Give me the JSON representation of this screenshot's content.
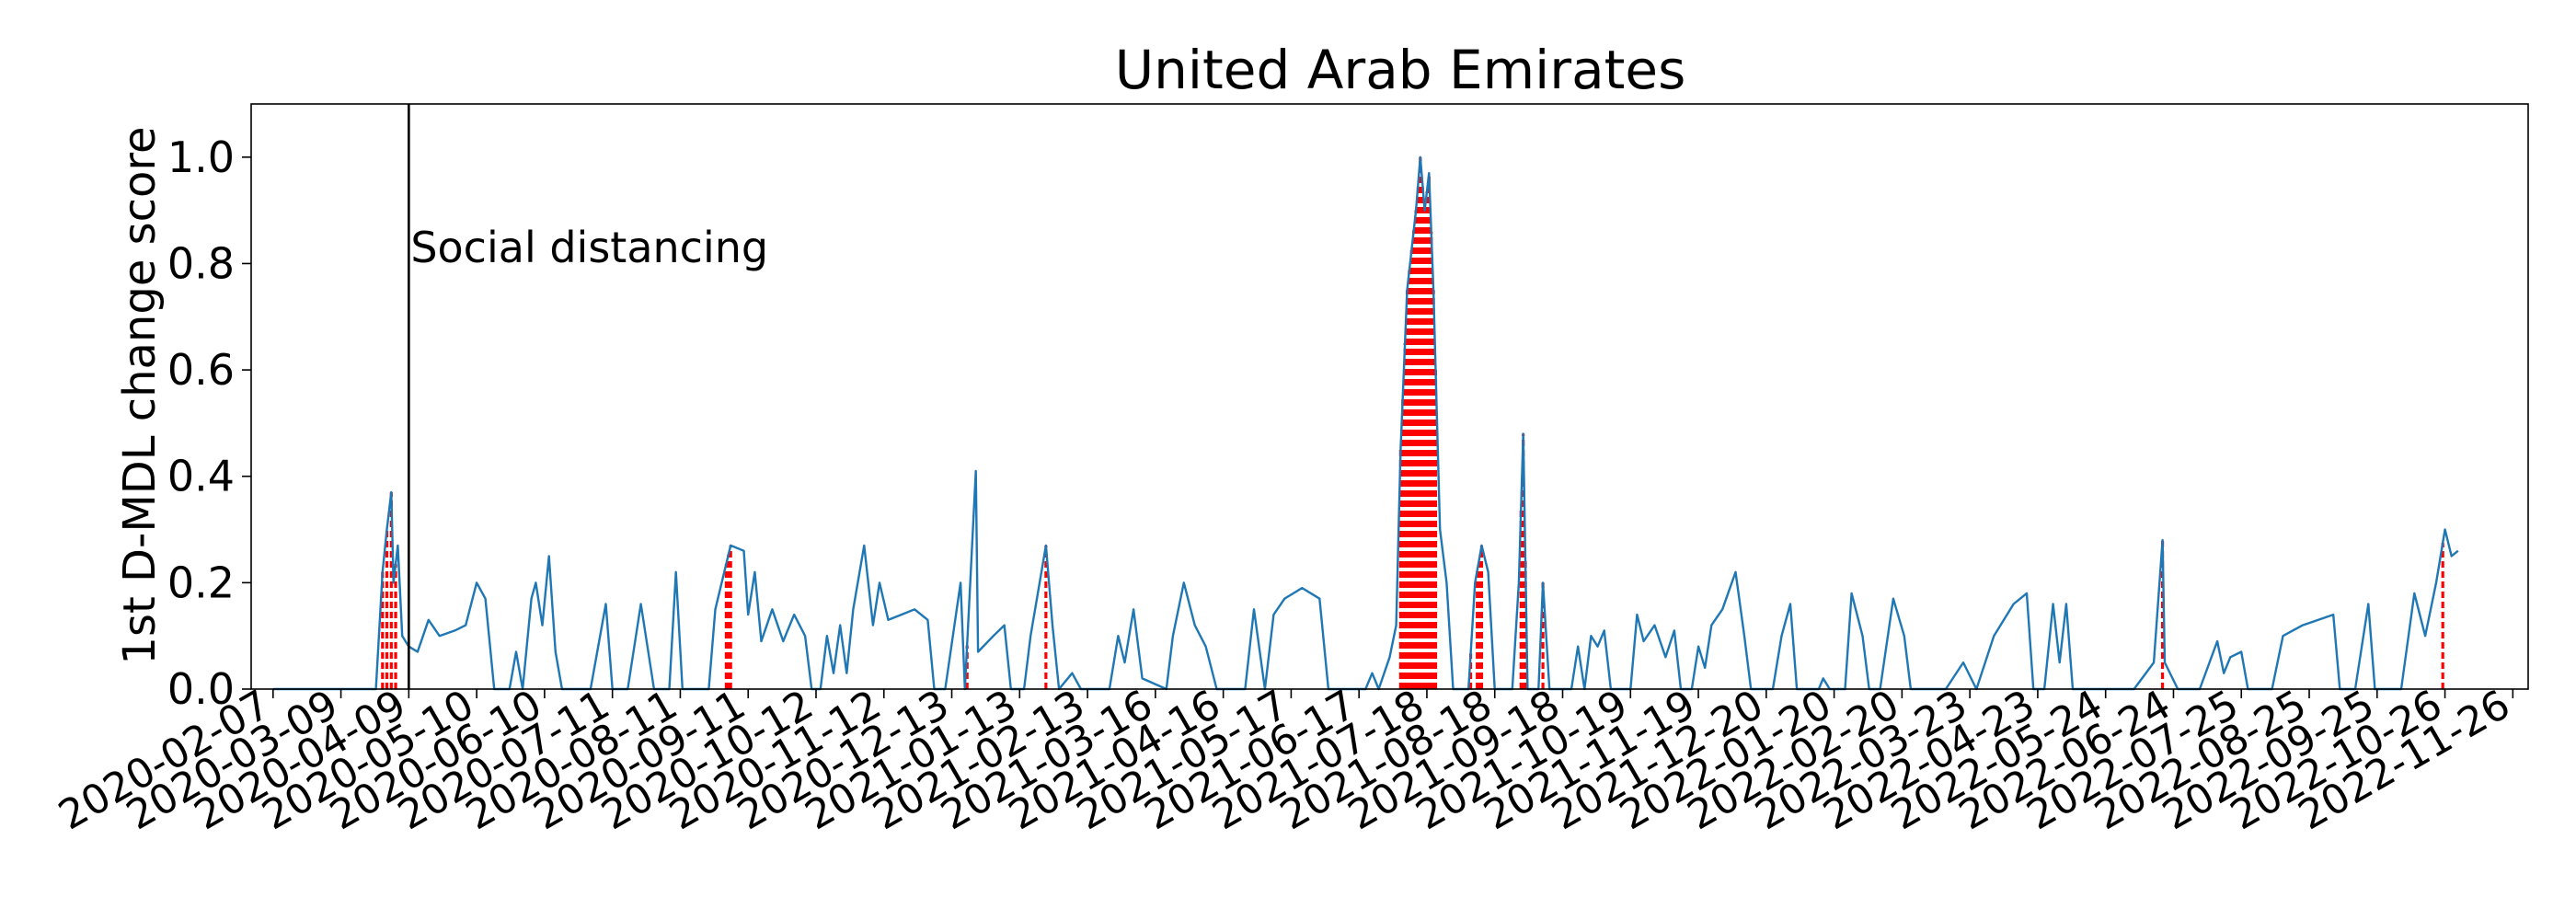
{
  "chart_data": {
    "type": "line",
    "title": "United Arab Emirates",
    "xlabel": "",
    "ylabel": "1st D-MDL change score",
    "ylim": [
      0,
      1.1
    ],
    "xlim": [
      "2020-01-28",
      "2022-12-03"
    ],
    "grid": false,
    "yticks": [
      "0.0",
      "0.2",
      "0.4",
      "0.6",
      "0.8",
      "1.0"
    ],
    "xticks": [
      "2020-02-07",
      "2020-03-09",
      "2020-04-09",
      "2020-05-10",
      "2020-06-10",
      "2020-07-11",
      "2020-08-11",
      "2020-09-11",
      "2020-10-12",
      "2020-11-12",
      "2020-12-13",
      "2021-01-13",
      "2021-02-13",
      "2021-03-16",
      "2021-04-16",
      "2021-05-17",
      "2021-06-17",
      "2021-07-18",
      "2021-08-18",
      "2021-09-18",
      "2021-10-19",
      "2021-11-19",
      "2021-12-20",
      "2022-01-20",
      "2022-02-20",
      "2022-03-23",
      "2022-04-23",
      "2022-05-24",
      "2022-06-24",
      "2022-07-25",
      "2022-08-25",
      "2022-09-25",
      "2022-10-26",
      "2022-11-26"
    ],
    "annotation": {
      "text": "Social distancing",
      "date": "2020-04-09"
    },
    "series": [
      {
        "color": "#1f77b4",
        "points": [
          [
            "2020-02-07",
            0.0
          ],
          [
            "2020-03-20",
            0.0
          ],
          [
            "2020-03-25",
            0.0
          ],
          [
            "2020-03-28",
            0.22
          ],
          [
            "2020-03-30",
            0.3
          ],
          [
            "2020-04-01",
            0.37
          ],
          [
            "2020-04-02",
            0.2
          ],
          [
            "2020-04-04",
            0.27
          ],
          [
            "2020-04-06",
            0.1
          ],
          [
            "2020-04-09",
            0.08
          ],
          [
            "2020-04-13",
            0.07
          ],
          [
            "2020-04-18",
            0.13
          ],
          [
            "2020-04-23",
            0.1
          ],
          [
            "2020-04-30",
            0.11
          ],
          [
            "2020-05-05",
            0.12
          ],
          [
            "2020-05-10",
            0.2
          ],
          [
            "2020-05-14",
            0.17
          ],
          [
            "2020-05-18",
            0.0
          ],
          [
            "2020-05-25",
            0.0
          ],
          [
            "2020-05-28",
            0.07
          ],
          [
            "2020-05-31",
            0.0
          ],
          [
            "2020-06-04",
            0.17
          ],
          [
            "2020-06-06",
            0.2
          ],
          [
            "2020-06-09",
            0.12
          ],
          [
            "2020-06-12",
            0.25
          ],
          [
            "2020-06-15",
            0.07
          ],
          [
            "2020-06-18",
            0.0
          ],
          [
            "2020-07-01",
            0.0
          ],
          [
            "2020-07-08",
            0.16
          ],
          [
            "2020-07-11",
            0.0
          ],
          [
            "2020-07-18",
            0.0
          ],
          [
            "2020-07-24",
            0.16
          ],
          [
            "2020-07-30",
            0.0
          ],
          [
            "2020-08-06",
            0.0
          ],
          [
            "2020-08-09",
            0.22
          ],
          [
            "2020-08-12",
            0.0
          ],
          [
            "2020-08-24",
            0.0
          ],
          [
            "2020-08-27",
            0.15
          ],
          [
            "2020-09-03",
            0.27
          ],
          [
            "2020-09-09",
            0.26
          ],
          [
            "2020-09-11",
            0.14
          ],
          [
            "2020-09-14",
            0.22
          ],
          [
            "2020-09-17",
            0.09
          ],
          [
            "2020-09-22",
            0.15
          ],
          [
            "2020-09-27",
            0.09
          ],
          [
            "2020-10-02",
            0.14
          ],
          [
            "2020-10-07",
            0.1
          ],
          [
            "2020-10-10",
            0.0
          ],
          [
            "2020-10-14",
            0.0
          ],
          [
            "2020-10-17",
            0.1
          ],
          [
            "2020-10-20",
            0.03
          ],
          [
            "2020-10-23",
            0.12
          ],
          [
            "2020-10-26",
            0.03
          ],
          [
            "2020-10-29",
            0.15
          ],
          [
            "2020-11-03",
            0.27
          ],
          [
            "2020-11-07",
            0.12
          ],
          [
            "2020-11-10",
            0.2
          ],
          [
            "2020-11-14",
            0.13
          ],
          [
            "2020-11-20",
            0.14
          ],
          [
            "2020-11-26",
            0.15
          ],
          [
            "2020-12-02",
            0.13
          ],
          [
            "2020-12-05",
            0.0
          ],
          [
            "2020-12-10",
            0.0
          ],
          [
            "2020-12-17",
            0.2
          ],
          [
            "2020-12-19",
            0.0
          ],
          [
            "2020-12-24",
            0.41
          ],
          [
            "2020-12-25",
            0.07
          ],
          [
            "2021-01-01",
            0.1
          ],
          [
            "2021-01-06",
            0.12
          ],
          [
            "2021-01-09",
            0.0
          ],
          [
            "2021-01-15",
            0.0
          ],
          [
            "2021-01-18",
            0.1
          ],
          [
            "2021-01-25",
            0.27
          ],
          [
            "2021-01-28",
            0.12
          ],
          [
            "2021-01-31",
            0.0
          ],
          [
            "2021-02-06",
            0.03
          ],
          [
            "2021-02-10",
            0.0
          ],
          [
            "2021-02-23",
            0.0
          ],
          [
            "2021-02-27",
            0.1
          ],
          [
            "2021-03-02",
            0.05
          ],
          [
            "2021-03-06",
            0.15
          ],
          [
            "2021-03-10",
            0.02
          ],
          [
            "2021-03-21",
            0.0
          ],
          [
            "2021-03-24",
            0.1
          ],
          [
            "2021-03-29",
            0.2
          ],
          [
            "2021-04-03",
            0.12
          ],
          [
            "2021-04-08",
            0.08
          ],
          [
            "2021-04-13",
            0.0
          ],
          [
            "2021-04-26",
            0.0
          ],
          [
            "2021-04-30",
            0.15
          ],
          [
            "2021-05-05",
            0.0
          ],
          [
            "2021-05-09",
            0.14
          ],
          [
            "2021-05-14",
            0.17
          ],
          [
            "2021-05-22",
            0.19
          ],
          [
            "2021-05-30",
            0.17
          ],
          [
            "2021-06-03",
            0.0
          ],
          [
            "2021-06-20",
            0.0
          ],
          [
            "2021-06-23",
            0.03
          ],
          [
            "2021-06-26",
            0.0
          ],
          [
            "2021-07-01",
            0.06
          ],
          [
            "2021-07-04",
            0.12
          ],
          [
            "2021-07-06",
            0.45
          ],
          [
            "2021-07-09",
            0.75
          ],
          [
            "2021-07-13",
            0.9
          ],
          [
            "2021-07-15",
            1.0
          ],
          [
            "2021-07-17",
            0.9
          ],
          [
            "2021-07-19",
            0.97
          ],
          [
            "2021-07-21",
            0.75
          ],
          [
            "2021-07-24",
            0.3
          ],
          [
            "2021-07-27",
            0.2
          ],
          [
            "2021-07-30",
            0.0
          ],
          [
            "2021-08-06",
            0.0
          ],
          [
            "2021-08-09",
            0.2
          ],
          [
            "2021-08-12",
            0.27
          ],
          [
            "2021-08-15",
            0.22
          ],
          [
            "2021-08-18",
            0.0
          ],
          [
            "2021-08-26",
            0.0
          ],
          [
            "2021-08-29",
            0.2
          ],
          [
            "2021-08-31",
            0.48
          ],
          [
            "2021-09-02",
            0.0
          ],
          [
            "2021-09-07",
            0.0
          ],
          [
            "2021-09-09",
            0.2
          ],
          [
            "2021-09-12",
            0.0
          ],
          [
            "2021-09-22",
            0.0
          ],
          [
            "2021-09-25",
            0.08
          ],
          [
            "2021-09-28",
            0.0
          ],
          [
            "2021-10-01",
            0.1
          ],
          [
            "2021-10-04",
            0.08
          ],
          [
            "2021-10-07",
            0.11
          ],
          [
            "2021-10-10",
            0.0
          ],
          [
            "2021-10-19",
            0.0
          ],
          [
            "2021-10-22",
            0.14
          ],
          [
            "2021-10-25",
            0.09
          ],
          [
            "2021-10-30",
            0.12
          ],
          [
            "2021-11-04",
            0.06
          ],
          [
            "2021-11-08",
            0.11
          ],
          [
            "2021-11-11",
            0.0
          ],
          [
            "2021-11-16",
            0.0
          ],
          [
            "2021-11-19",
            0.08
          ],
          [
            "2021-11-22",
            0.04
          ],
          [
            "2021-11-25",
            0.12
          ],
          [
            "2021-11-30",
            0.15
          ],
          [
            "2021-12-06",
            0.22
          ],
          [
            "2021-12-10",
            0.1
          ],
          [
            "2021-12-13",
            0.0
          ],
          [
            "2021-12-23",
            0.0
          ],
          [
            "2021-12-27",
            0.1
          ],
          [
            "2021-12-31",
            0.16
          ],
          [
            "2022-01-03",
            0.0
          ],
          [
            "2022-01-13",
            0.0
          ],
          [
            "2022-01-15",
            0.02
          ],
          [
            "2022-01-18",
            0.0
          ],
          [
            "2022-01-25",
            0.0
          ],
          [
            "2022-01-28",
            0.18
          ],
          [
            "2022-02-02",
            0.1
          ],
          [
            "2022-02-05",
            0.0
          ],
          [
            "2022-02-10",
            0.0
          ],
          [
            "2022-02-16",
            0.17
          ],
          [
            "2022-02-21",
            0.1
          ],
          [
            "2022-02-24",
            0.0
          ],
          [
            "2022-03-12",
            0.0
          ],
          [
            "2022-03-20",
            0.05
          ],
          [
            "2022-03-26",
            0.0
          ],
          [
            "2022-04-03",
            0.1
          ],
          [
            "2022-04-12",
            0.16
          ],
          [
            "2022-04-18",
            0.18
          ],
          [
            "2022-04-21",
            0.0
          ],
          [
            "2022-04-26",
            0.0
          ],
          [
            "2022-04-30",
            0.16
          ],
          [
            "2022-05-03",
            0.05
          ],
          [
            "2022-05-06",
            0.16
          ],
          [
            "2022-05-09",
            0.0
          ],
          [
            "2022-06-06",
            0.0
          ],
          [
            "2022-06-15",
            0.05
          ],
          [
            "2022-06-19",
            0.28
          ],
          [
            "2022-06-20",
            0.05
          ],
          [
            "2022-06-26",
            0.0
          ],
          [
            "2022-07-06",
            0.0
          ],
          [
            "2022-07-14",
            0.09
          ],
          [
            "2022-07-17",
            0.03
          ],
          [
            "2022-07-20",
            0.06
          ],
          [
            "2022-07-25",
            0.07
          ],
          [
            "2022-07-28",
            0.0
          ],
          [
            "2022-08-08",
            0.0
          ],
          [
            "2022-08-13",
            0.1
          ],
          [
            "2022-08-22",
            0.12
          ],
          [
            "2022-09-05",
            0.14
          ],
          [
            "2022-09-08",
            0.0
          ],
          [
            "2022-09-15",
            0.0
          ],
          [
            "2022-09-21",
            0.16
          ],
          [
            "2022-09-24",
            0.0
          ],
          [
            "2022-10-06",
            0.0
          ],
          [
            "2022-10-12",
            0.18
          ],
          [
            "2022-10-17",
            0.1
          ],
          [
            "2022-10-22",
            0.2
          ],
          [
            "2022-10-26",
            0.3
          ],
          [
            "2022-10-29",
            0.25
          ],
          [
            "2022-11-01",
            0.26
          ]
        ]
      }
    ],
    "change_markers": {
      "color": "#ff0000",
      "style": "dashed",
      "dates": [
        "2020-03-28",
        "2020-03-30",
        "2020-04-01",
        "2020-04-03",
        "2020-09-01",
        "2020-09-02",
        "2020-09-03",
        "2020-12-20",
        "2021-01-25",
        "2021-07-06",
        "2021-07-07",
        "2021-07-08",
        "2021-07-09",
        "2021-07-10",
        "2021-07-11",
        "2021-07-12",
        "2021-07-13",
        "2021-07-14",
        "2021-07-15",
        "2021-07-16",
        "2021-07-17",
        "2021-07-18",
        "2021-07-19",
        "2021-07-20",
        "2021-07-21",
        "2021-07-22",
        "2021-08-07",
        "2021-08-10",
        "2021-08-11",
        "2021-08-12",
        "2021-08-30",
        "2021-08-31",
        "2021-09-01",
        "2021-09-09",
        "2022-06-19",
        "2022-10-25"
      ]
    }
  }
}
